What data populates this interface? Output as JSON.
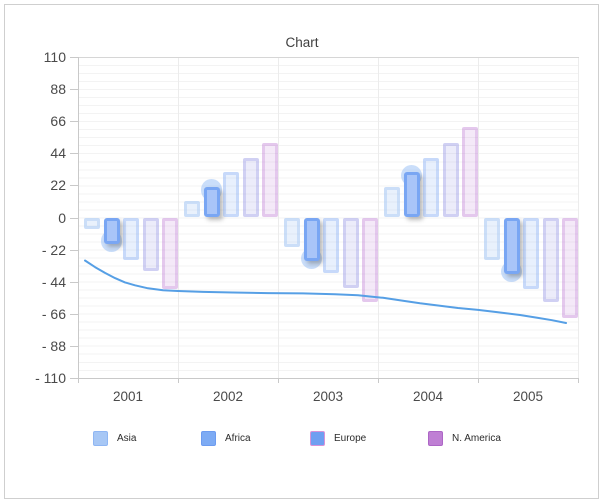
{
  "card": {
    "title": "Chart"
  },
  "chart_data": {
    "type": "bar+line",
    "title": "Chart",
    "categories": [
      "2001",
      "2002",
      "2003",
      "2004",
      "2005"
    ],
    "ylim": [
      -110,
      110
    ],
    "y_axis": {
      "min": -110,
      "max": 110,
      "step": 22,
      "tick_values": [
        110,
        88,
        66,
        44,
        22,
        0,
        -22,
        -44,
        -66,
        -88,
        -110
      ],
      "tick_labels": [
        "110",
        "88",
        "66",
        "44",
        "22",
        "0",
        "- 22",
        "- 44",
        "- 66",
        "- 88",
        "- 110"
      ]
    },
    "grid": {
      "minor_horizontal_step": 5.5,
      "vertical_gridlines": "category_boundaries"
    },
    "series": [
      {
        "name": "Asia",
        "type": "bar",
        "values": [
          -8,
          11,
          -20,
          21,
          -29
        ],
        "fill": "rgba(167,199,245,0.25)",
        "border": "rgba(167,199,245,0.45)",
        "emphasis": false
      },
      {
        "name": "Africa",
        "type": "bar",
        "values": [
          -18,
          21,
          -30,
          31,
          -39
        ],
        "fill": "#a9c5f8",
        "border": "#79a6f3",
        "emphasis": true
      },
      {
        "name": "Europe",
        "type": "bar",
        "values": [
          -29,
          31,
          -38,
          41,
          -49
        ],
        "fill": "rgba(111,159,241,0.16)",
        "border": "rgba(111,159,241,0.28)",
        "emphasis": false
      },
      {
        "name": "",
        "type": "bar",
        "values": [
          -37,
          41,
          -48,
          51,
          -58
        ],
        "fill": "rgba(138,138,222,0.16)",
        "border": "rgba(138,138,222,0.28)",
        "emphasis": false
      },
      {
        "name": "N. America",
        "type": "bar",
        "values": [
          -49,
          51,
          -58,
          62,
          -69
        ],
        "fill": "rgba(191,127,212,0.17)",
        "border": "rgba(191,127,212,0.30)",
        "emphasis": false
      }
    ],
    "line_series": {
      "color": "#569fe5",
      "points": [
        [
          0.07,
          -29.5
        ],
        [
          0.17,
          -34
        ],
        [
          0.27,
          -38
        ],
        [
          0.37,
          -41.5
        ],
        [
          0.47,
          -44.5
        ],
        [
          0.57,
          -46.5
        ],
        [
          0.7,
          -48.5
        ],
        [
          0.85,
          -49.8
        ],
        [
          1.0,
          -50.4
        ],
        [
          1.25,
          -51
        ],
        [
          1.55,
          -51.4
        ],
        [
          1.9,
          -51.8
        ],
        [
          2.25,
          -52
        ],
        [
          2.57,
          -52.6
        ],
        [
          2.8,
          -53.3
        ],
        [
          3.05,
          -55
        ],
        [
          3.25,
          -57
        ],
        [
          3.42,
          -58.8
        ],
        [
          3.6,
          -60.3
        ],
        [
          3.8,
          -62
        ],
        [
          4.0,
          -63.3
        ],
        [
          4.2,
          -65
        ],
        [
          4.42,
          -66.8
        ],
        [
          4.6,
          -68.8
        ],
        [
          4.74,
          -70.4
        ],
        [
          4.88,
          -72.3
        ]
      ]
    },
    "legend": {
      "position": "bottom",
      "items": [
        {
          "label": "Asia",
          "fill": "#a7c7f5",
          "border": "#8fb6f3"
        },
        {
          "label": "Africa",
          "fill": "#7dabf4",
          "border": "#6d9cf0"
        },
        {
          "label": "Europe",
          "fill": "#6f9ff1",
          "border": "#d893d8"
        },
        {
          "label": "N. America",
          "fill": "#bf7fd4",
          "border": "#ad66c6"
        }
      ]
    }
  }
}
